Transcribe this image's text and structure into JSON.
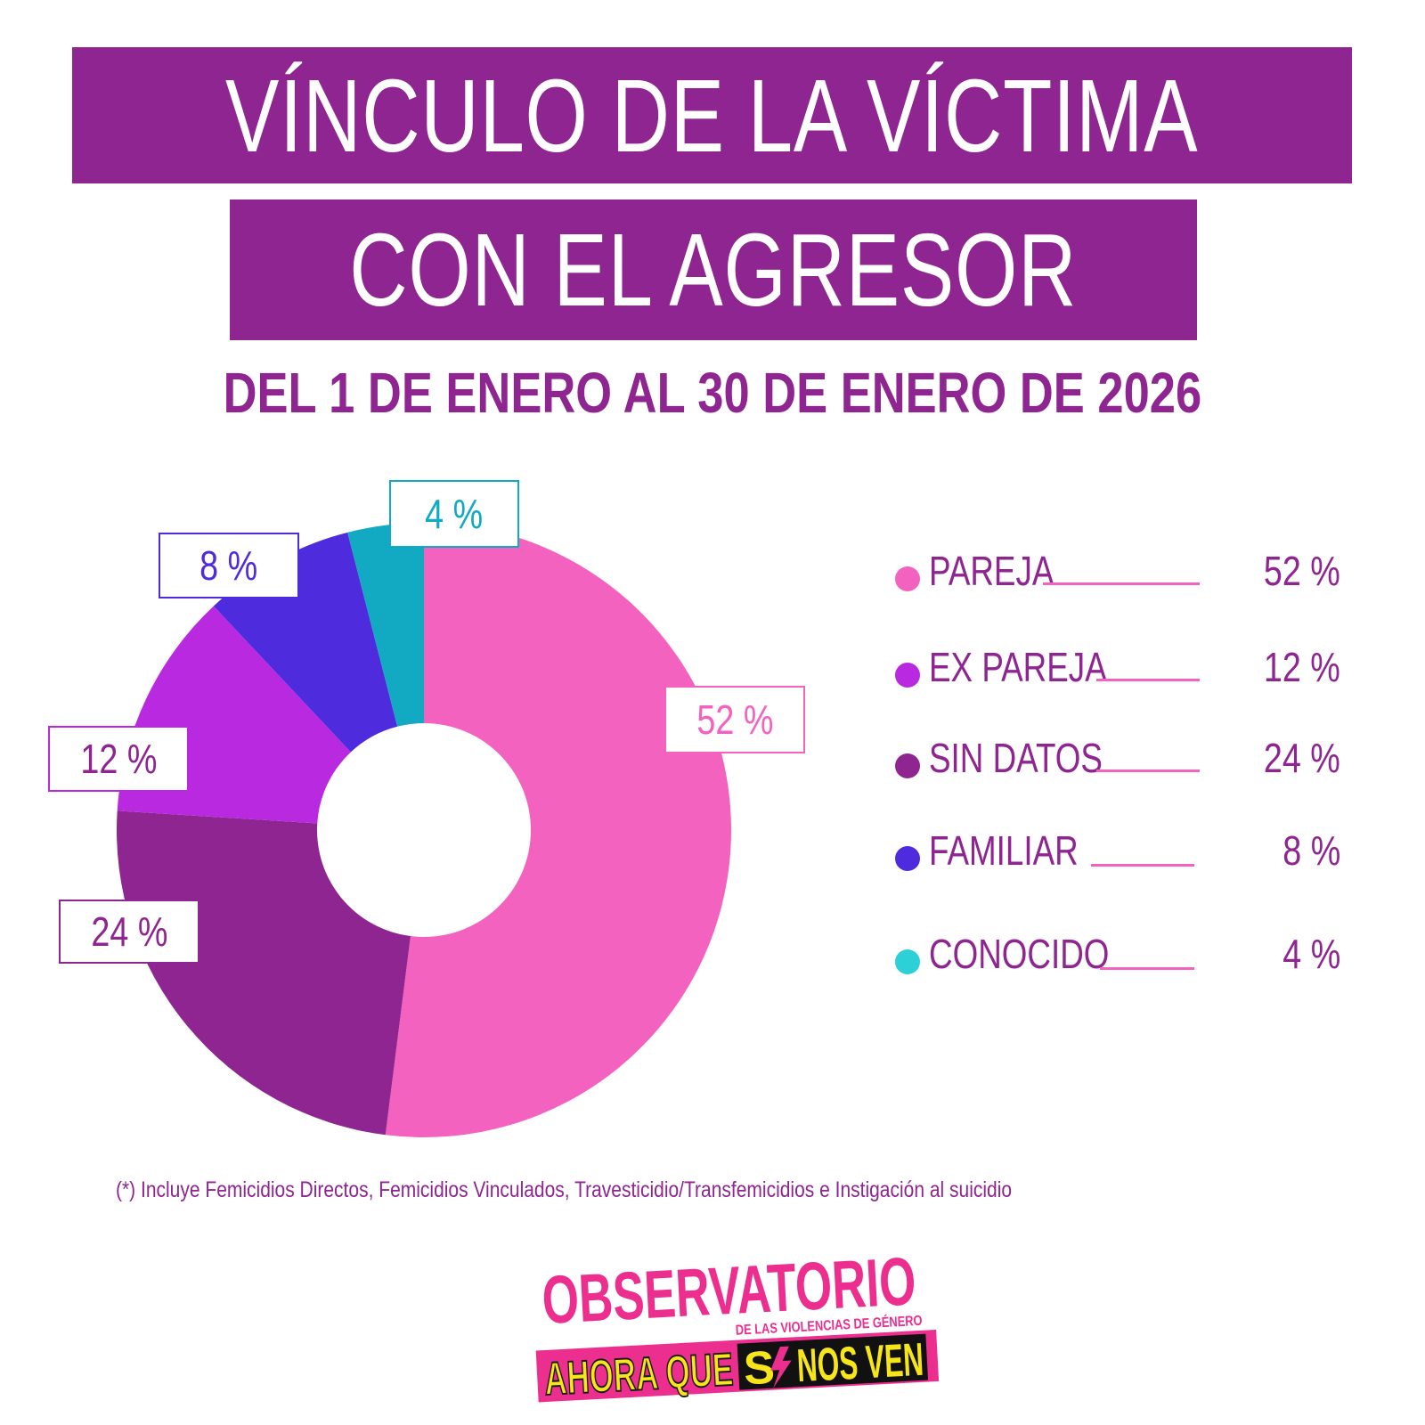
{
  "header": {
    "title_line1": "VÍNCULO DE LA VÍCTIMA",
    "title_line2": "CON EL AGRESOR",
    "subtitle": "DEL 1 DE ENERO AL 30 DE ENERO DE 2026"
  },
  "chart_data": {
    "type": "pie",
    "title": "VÍNCULO DE LA VÍCTIMA CON EL AGRESOR",
    "subtitle": "DEL 1 DE ENERO AL 30 DE ENERO DE 2026",
    "donut": true,
    "categories": [
      "PAREJA",
      "EX PAREJA",
      "SIN DATOS",
      "FAMILIAR",
      "CONOCIDO"
    ],
    "values": [
      52,
      12,
      24,
      8,
      4
    ],
    "value_labels": [
      "52 %",
      "12 %",
      "24 %",
      "8 %",
      "4 %"
    ],
    "slice_order": [
      "PAREJA",
      "SIN DATOS",
      "EX PAREJA",
      "FAMILIAR",
      "CONOCIDO"
    ],
    "colors": {
      "PAREJA": "#f462bf",
      "EX PAREJA": "#b829e0",
      "SIN DATOS": "#8e2590",
      "FAMILIAR": "#4f2bde",
      "CONOCIDO": "#12a9c2"
    },
    "legend_position": "right"
  },
  "legend": [
    {
      "label": "PAREJA",
      "value": "52 %",
      "dot_color": "#f462bf"
    },
    {
      "label": "EX PAREJA",
      "value": "12 %",
      "dot_color": "#b829e0"
    },
    {
      "label": "SIN DATOS",
      "value": "24 %",
      "dot_color": "#8e2590"
    },
    {
      "label": "FAMILIAR",
      "value": "8 %",
      "dot_color": "#4f2bde"
    },
    {
      "label": "CONOCIDO",
      "value": "4 %",
      "dot_color": "#2dd0d6"
    }
  ],
  "footnote": "(*) Incluye Femicidios Directos, Femicidios Vinculados,  Travesticidio/Transfemicidios e Instigación al suicidio",
  "logo": {
    "line1": "OBSERVATORIO",
    "line2": "DE LAS VIOLENCIAS DE GÉNERO",
    "line3a": "AHORA QUE",
    "line3b": "S",
    "line3c": "NOS VEN"
  },
  "colors": {
    "brand_purple": "#8e2590",
    "brand_pink": "#ec2f8f",
    "logo_yellow": "#f6e51a"
  }
}
